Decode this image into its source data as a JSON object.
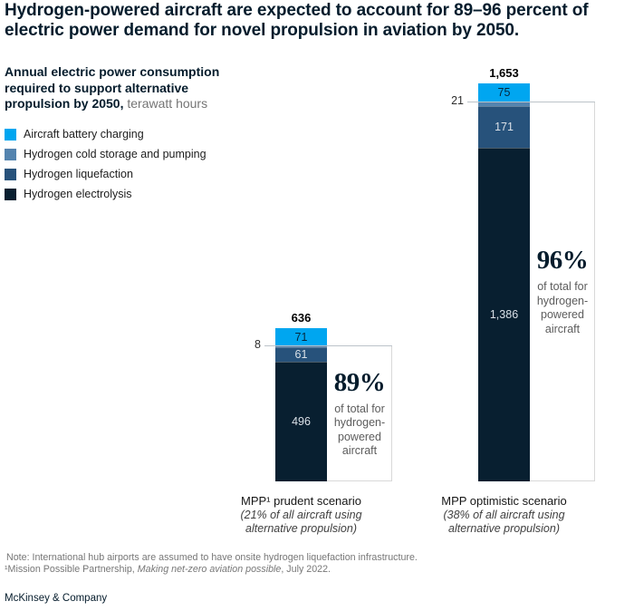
{
  "title": {
    "line1": "Hydrogen-powered aircraft are expected to account for 89–96 percent of",
    "line2": "electric power demand for novel propulsion in aviation by 2050."
  },
  "subtitle": {
    "line1": "Annual electric power consumption",
    "line2": "required to support alternative",
    "line3_bold": "propulsion by 2050,",
    "line3_unit": " terawatt hours"
  },
  "chart_data": {
    "type": "bar",
    "stacked": true,
    "title": "Annual electric power consumption required to support alternative propulsion by 2050",
    "ylabel": "terawatt hours",
    "ylim": [
      0,
      1700
    ],
    "grid": false,
    "legend_position": "top-left",
    "categories": [
      "MPP¹ prudent scenario",
      "MPP optimistic scenario"
    ],
    "category_sublabels": [
      [
        "(21% of all aircraft using",
        "alternative propulsion)"
      ],
      [
        "(38% of all aircraft using",
        "alternative propulsion)"
      ]
    ],
    "series": [
      {
        "name": "Aircraft battery charging",
        "color": "#00a6f0",
        "values": [
          71,
          75
        ],
        "value_labels": [
          "71",
          "75"
        ],
        "label_inside": true,
        "label_color": "dark"
      },
      {
        "name": "Hydrogen cold storage and pumping",
        "color": "#5484af",
        "values": [
          8,
          21
        ],
        "value_labels": [
          "8",
          "21"
        ],
        "label_inside": false,
        "label_color": null
      },
      {
        "name": "Hydrogen liquefaction",
        "color": "#27527b",
        "values": [
          61,
          171
        ],
        "value_labels": [
          "61",
          "171"
        ],
        "label_inside": true,
        "label_color": "light"
      },
      {
        "name": "Hydrogen electrolysis",
        "color": "#081f30",
        "values": [
          496,
          1386
        ],
        "value_labels": [
          "496",
          "1,386"
        ],
        "label_inside": true,
        "label_color": "light"
      }
    ],
    "totals": [
      "636",
      "1,653"
    ],
    "callouts": [
      {
        "percent": "89%",
        "lines": [
          "of total for",
          "hydrogen-",
          "powered",
          "aircraft"
        ]
      },
      {
        "percent": "96%",
        "lines": [
          "of total for",
          "hydrogen-",
          "powered",
          "aircraft"
        ]
      }
    ]
  },
  "notes": {
    "line1": "Note: International hub airports are assumed to have onsite hydrogen liquefaction infrastructure.",
    "footnote_pre": "¹Mission Possible Partnership, ",
    "footnote_italic": "Making net-zero aviation possible",
    "footnote_post": ", July 2022."
  },
  "logo": "McKinsey & Company"
}
